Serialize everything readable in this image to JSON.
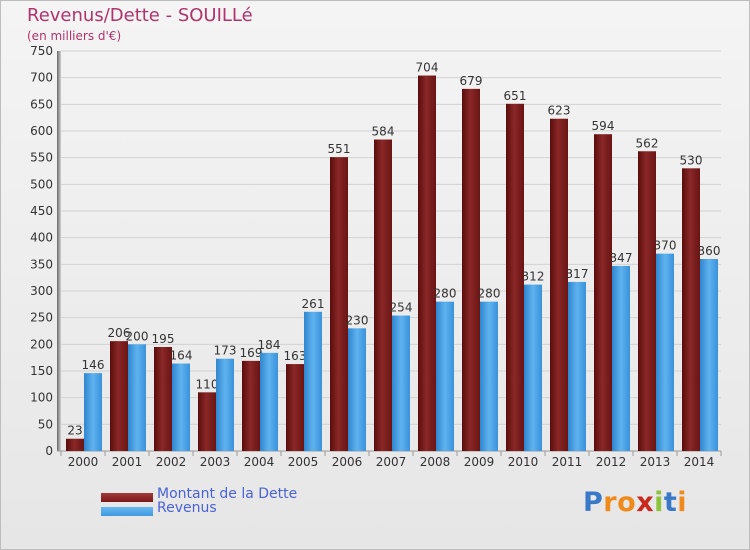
{
  "header": {
    "title": "Revenus/Dette - SOUILLé",
    "subtitle": "(en milliers d'€)"
  },
  "colors": {
    "dette": "#7a1818",
    "revenus": "#3e9ae0",
    "title": "#b0336c",
    "legend_text": "#4a63d6"
  },
  "chart_data": {
    "type": "bar",
    "title": "Revenus/Dette - SOUILLé",
    "subtitle": "(en milliers d'€)",
    "categories": [
      "2000",
      "2001",
      "2002",
      "2003",
      "2004",
      "2005",
      "2006",
      "2007",
      "2008",
      "2009",
      "2010",
      "2011",
      "2012",
      "2013",
      "2014"
    ],
    "series": [
      {
        "name": "Montant de la Dette",
        "values": [
          23,
          206,
          195,
          110,
          169,
          163,
          551,
          584,
          704,
          679,
          651,
          623,
          594,
          562,
          530
        ]
      },
      {
        "name": "Revenus",
        "values": [
          146,
          200,
          164,
          173,
          184,
          261,
          230,
          254,
          280,
          280,
          312,
          317,
          347,
          370,
          360
        ]
      }
    ],
    "ylim": [
      0,
      750
    ],
    "yticks": [
      0,
      50,
      100,
      150,
      200,
      250,
      300,
      350,
      400,
      450,
      500,
      550,
      600,
      650,
      700,
      750
    ],
    "grid": true,
    "legend_position": "bottom-left"
  },
  "legend": {
    "items": [
      {
        "label": "Montant de la Dette",
        "color": "#7a1818"
      },
      {
        "label": "Revenus",
        "color": "#3e9ae0"
      }
    ]
  },
  "logo": {
    "text": "Proxiti",
    "letters": [
      "P",
      "r",
      "o",
      "x",
      "i",
      "t",
      "i"
    ],
    "letter_colors": [
      "#3a78c8",
      "#f08a1c",
      "#f08a1c",
      "#c8281e",
      "#8cc43c",
      "#3a78c8",
      "#f08a1c"
    ]
  }
}
